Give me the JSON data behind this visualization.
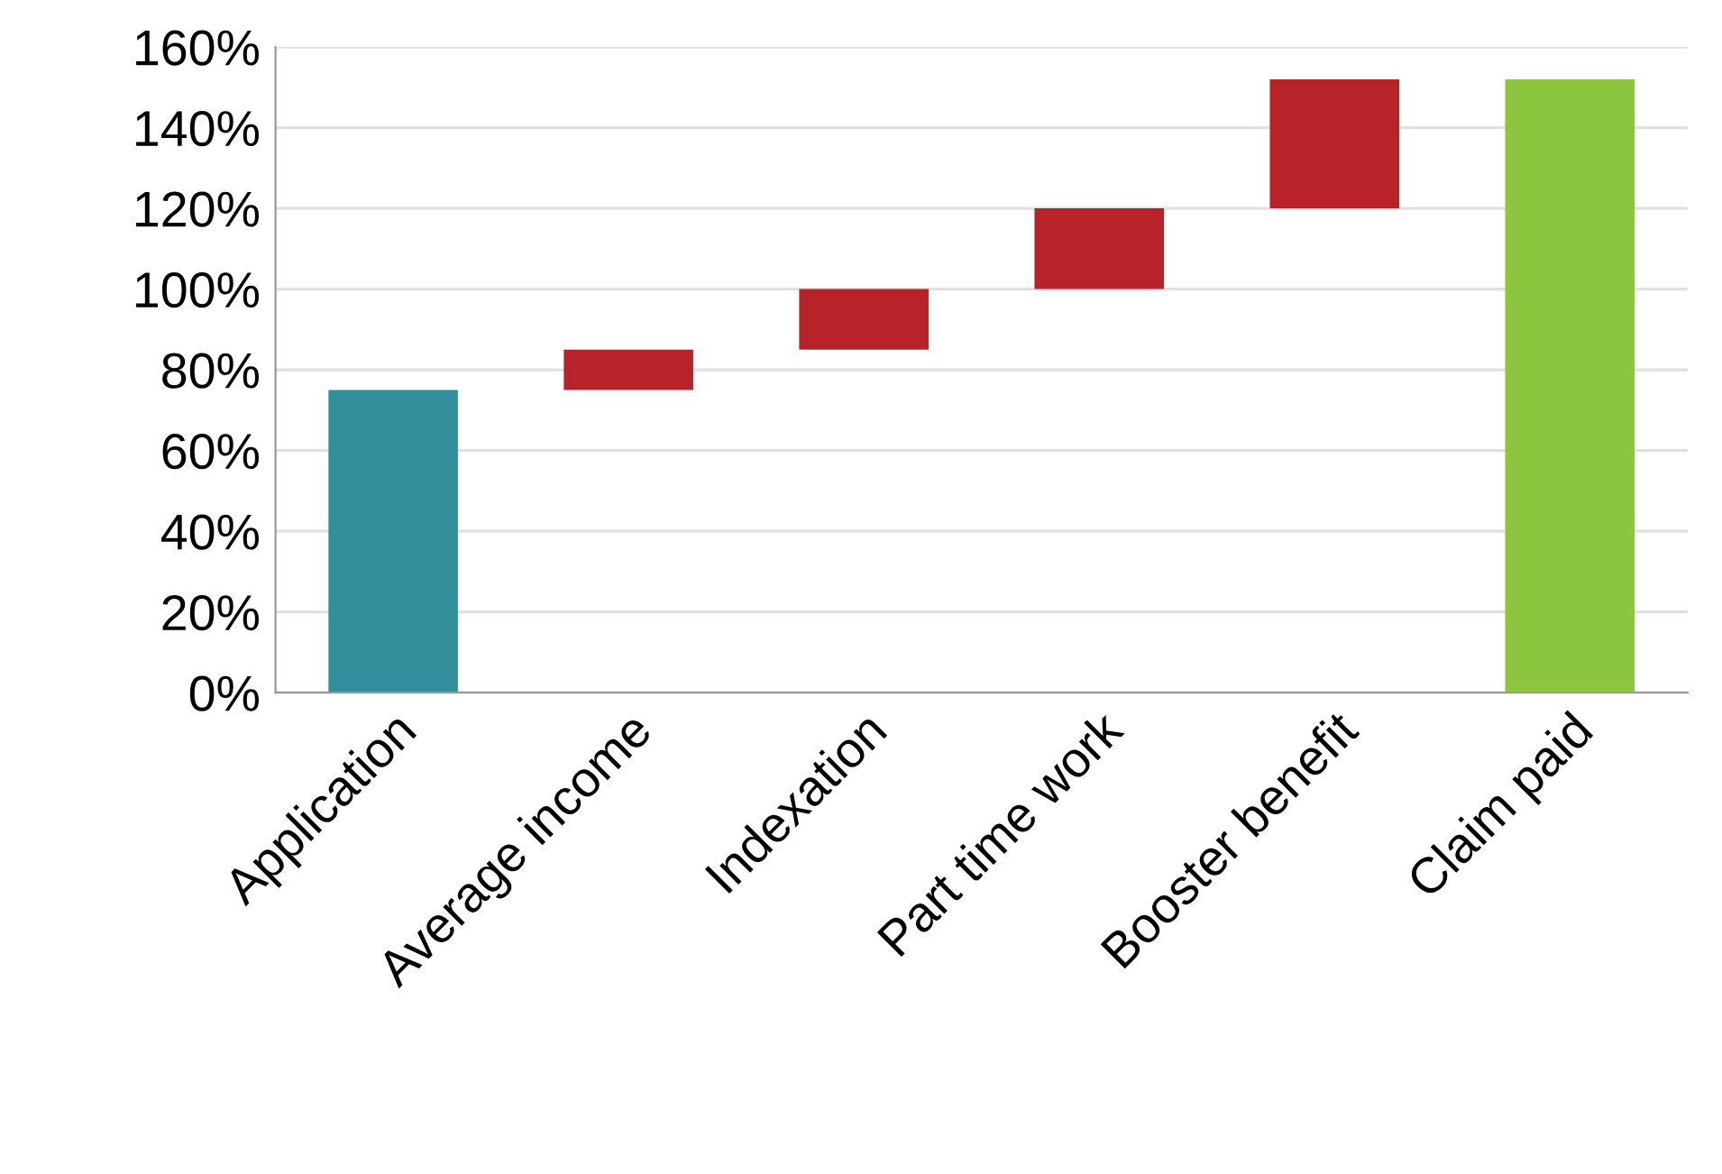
{
  "chart_data": {
    "type": "bar",
    "categories": [
      "Application",
      "Average income",
      "Indexation",
      "Part time work",
      "Booster benefit",
      "Claim paid"
    ],
    "values": [
      75,
      10,
      15,
      20,
      32,
      152
    ],
    "base": [
      0,
      75,
      85,
      100,
      120,
      0
    ],
    "colors": [
      "#318f9b",
      "#b82229",
      "#b82229",
      "#b82229",
      "#b82229",
      "#8cc63f"
    ],
    "ylim": [
      0,
      160
    ],
    "yticks": [
      {
        "value": 0,
        "label": "0%"
      },
      {
        "value": 20,
        "label": "20%"
      },
      {
        "value": 40,
        "label": "40%"
      },
      {
        "value": 60,
        "label": "60%"
      },
      {
        "value": 80,
        "label": "80%"
      },
      {
        "value": 100,
        "label": "100%"
      },
      {
        "value": 120,
        "label": "120%"
      },
      {
        "value": 140,
        "label": "140%"
      },
      {
        "value": 160,
        "label": "160%"
      }
    ],
    "grid": "y"
  }
}
